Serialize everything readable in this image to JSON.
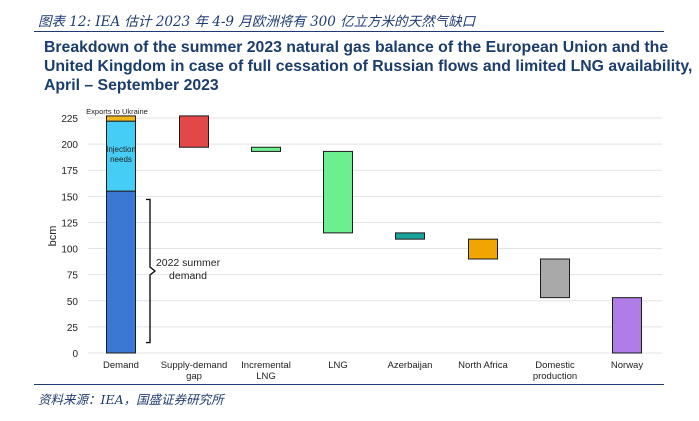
{
  "figure_caption": "图表 12:  IEA 估计 2023 年 4-9 月欧洲将有 300 亿立方米的天然气缺口",
  "source_caption": "资料来源：IEA，国盛证券研究所",
  "chart_data": {
    "type": "bar",
    "subtype": "waterfall",
    "title_lines": [
      "Breakdown of the summer 2023 natural gas balance of the European Union and the",
      "United Kingdom in case of full cessation of Russian flows and limited LNG availability,",
      "April – September 2023"
    ],
    "ylabel": "bcm",
    "ylim": [
      0,
      225
    ],
    "yticks": [
      0,
      25,
      50,
      75,
      100,
      125,
      150,
      175,
      200,
      225
    ],
    "grid": true,
    "stack": {
      "category": "Demand",
      "segments": [
        {
          "label": "2022 summer demand",
          "from": 0,
          "to": 155,
          "color": "#3a78d4"
        },
        {
          "label": "Injection needs",
          "from": 155,
          "to": 222,
          "color": "#46cdf5"
        },
        {
          "label": "Exports to Ukraine",
          "from": 222,
          "to": 227,
          "color": "#f2b61d"
        }
      ]
    },
    "bars": [
      {
        "category": "Supply-demand gap",
        "from": 197,
        "to": 227,
        "color": "#e34848"
      },
      {
        "category": "Incremental LNG",
        "from": 193,
        "to": 197,
        "color": "#6cf08f"
      },
      {
        "category": "LNG",
        "from": 115,
        "to": 193,
        "color": "#6cf08f"
      },
      {
        "category": "Azerbaijan",
        "from": 109,
        "to": 115,
        "color": "#1aa39b"
      },
      {
        "category": "North Africa",
        "from": 90,
        "to": 109,
        "color": "#f0a500"
      },
      {
        "category": "Domestic production",
        "from": 53,
        "to": 90,
        "color": "#a9a9a9"
      },
      {
        "category": "Norway",
        "from": 0,
        "to": 53,
        "color": "#b07ce8"
      }
    ],
    "category_labels": [
      [
        "Demand"
      ],
      [
        "Supply-demand",
        "gap"
      ],
      [
        "Incremental",
        "LNG"
      ],
      [
        "LNG"
      ],
      [
        "Azerbaijan"
      ],
      [
        "North Africa"
      ],
      [
        "Domestic",
        "production"
      ],
      [
        "Norway"
      ]
    ],
    "annotations": {
      "exports_label": "Exports to Ukraine",
      "injection_label_lines": [
        "Injection",
        "needs"
      ],
      "bracket_label_lines": [
        "2022 summer",
        "demand"
      ],
      "bracket_range": [
        10,
        147
      ]
    }
  }
}
